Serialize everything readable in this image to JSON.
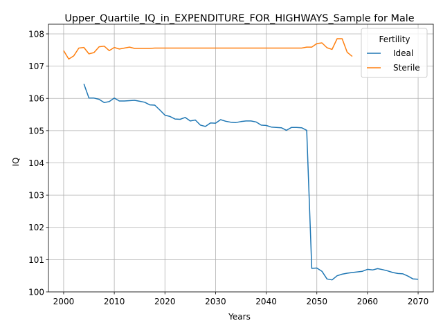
{
  "chart_data": {
    "type": "line",
    "title": "Upper_Quartile_IQ_in_EXPENDITURE_FOR_HIGHWAYS_Sample for Male",
    "xlabel": "Years",
    "ylabel": "IQ",
    "xlim": [
      1997,
      2073
    ],
    "ylim": [
      100,
      108.3
    ],
    "xticks": [
      2000,
      2010,
      2020,
      2030,
      2040,
      2050,
      2060,
      2070
    ],
    "yticks": [
      100,
      101,
      102,
      103,
      104,
      105,
      106,
      107,
      108
    ],
    "grid": true,
    "legend": {
      "title": "Fertility",
      "placement": "top-right"
    },
    "series": [
      {
        "name": "Ideal",
        "color": "#1f77b4",
        "x": [
          2004,
          2005,
          2006,
          2007,
          2008,
          2009,
          2010,
          2011,
          2012,
          2013,
          2014,
          2015,
          2016,
          2017,
          2018,
          2019,
          2020,
          2021,
          2022,
          2023,
          2024,
          2025,
          2026,
          2027,
          2028,
          2029,
          2030,
          2031,
          2032,
          2033,
          2034,
          2035,
          2036,
          2037,
          2038,
          2039,
          2040,
          2041,
          2042,
          2043,
          2044,
          2045,
          2046,
          2047,
          2048,
          2049,
          2050,
          2051,
          2052,
          2053,
          2054,
          2055,
          2056,
          2057,
          2058,
          2059,
          2060,
          2061,
          2062,
          2063,
          2064,
          2065,
          2066,
          2067,
          2068,
          2069,
          2070
        ],
        "values": [
          106.45,
          106.01,
          106.01,
          105.97,
          105.87,
          105.9,
          106.01,
          105.92,
          105.92,
          105.93,
          105.94,
          105.91,
          105.88,
          105.8,
          105.79,
          105.64,
          105.48,
          105.44,
          105.36,
          105.35,
          105.41,
          105.3,
          105.33,
          105.17,
          105.13,
          105.24,
          105.23,
          105.34,
          105.29,
          105.26,
          105.25,
          105.28,
          105.3,
          105.3,
          105.27,
          105.17,
          105.16,
          105.11,
          105.1,
          105.09,
          105.01,
          105.1,
          105.1,
          105.09,
          105.01,
          100.73,
          100.74,
          100.64,
          100.4,
          100.37,
          100.5,
          100.55,
          100.58,
          100.6,
          100.62,
          100.64,
          100.7,
          100.68,
          100.72,
          100.69,
          100.65,
          100.6,
          100.57,
          100.56,
          100.49,
          100.4,
          100.39
        ]
      },
      {
        "name": "Sterile",
        "color": "#ff7f0e",
        "x": [
          2000,
          2001,
          2002,
          2003,
          2004,
          2005,
          2006,
          2007,
          2008,
          2009,
          2010,
          2011,
          2012,
          2013,
          2014,
          2015,
          2016,
          2017,
          2018,
          2019,
          2020,
          2021,
          2022,
          2023,
          2024,
          2025,
          2026,
          2027,
          2028,
          2029,
          2030,
          2031,
          2032,
          2033,
          2034,
          2035,
          2036,
          2037,
          2038,
          2039,
          2040,
          2041,
          2042,
          2043,
          2044,
          2045,
          2046,
          2047,
          2048,
          2049,
          2050,
          2051,
          2052,
          2053,
          2054,
          2055,
          2056,
          2057
        ],
        "values": [
          107.48,
          107.22,
          107.32,
          107.56,
          107.58,
          107.38,
          107.42,
          107.6,
          107.62,
          107.48,
          107.58,
          107.53,
          107.56,
          107.59,
          107.55,
          107.55,
          107.55,
          107.55,
          107.56,
          107.56,
          107.56,
          107.56,
          107.56,
          107.56,
          107.56,
          107.56,
          107.56,
          107.56,
          107.56,
          107.56,
          107.56,
          107.56,
          107.56,
          107.56,
          107.56,
          107.56,
          107.56,
          107.56,
          107.56,
          107.56,
          107.56,
          107.56,
          107.56,
          107.56,
          107.56,
          107.56,
          107.56,
          107.56,
          107.59,
          107.59,
          107.7,
          107.72,
          107.57,
          107.52,
          107.85,
          107.85,
          107.43,
          107.3
        ]
      }
    ]
  }
}
